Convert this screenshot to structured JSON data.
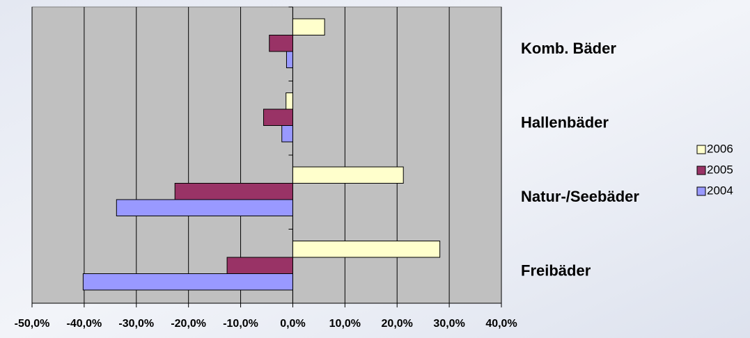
{
  "chart_data": {
    "type": "barh",
    "categories": [
      "Freibäder",
      "Natur-/Seebäder",
      "Hallenbäder",
      "Komb. Bäder"
    ],
    "series": [
      {
        "name": "2004",
        "color": "#9999ff",
        "values": [
          -40.2,
          -33.8,
          -2.1,
          -1.2
        ]
      },
      {
        "name": "2005",
        "color": "#993366",
        "values": [
          -12.6,
          -22.6,
          -5.6,
          -4.5
        ]
      },
      {
        "name": "2006",
        "color": "#ffffcc",
        "values": [
          28.2,
          21.2,
          -1.3,
          6.1
        ]
      }
    ],
    "xlim": [
      -50,
      40
    ],
    "xticks": [
      {
        "value": -50,
        "label": "-50,0%"
      },
      {
        "value": -40,
        "label": "-40,0%"
      },
      {
        "value": -30,
        "label": "-30,0%"
      },
      {
        "value": -20,
        "label": "-20,0%"
      },
      {
        "value": -10,
        "label": "-10,0%"
      },
      {
        "value": 0,
        "label": "0,0%"
      },
      {
        "value": 10,
        "label": "10,0%"
      },
      {
        "value": 20,
        "label": "20,0%"
      },
      {
        "value": 30,
        "label": "30,0%"
      },
      {
        "value": 40,
        "label": "40,0%"
      }
    ],
    "grid": true,
    "legend": "right"
  }
}
